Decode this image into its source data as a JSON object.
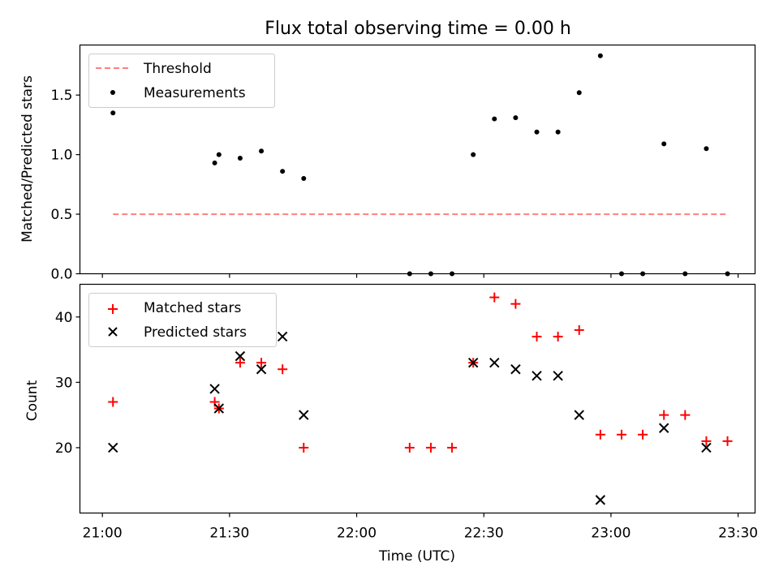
{
  "title": "Flux total observing time = 0.00 h",
  "colors": {
    "threshold": "#ff7f7f",
    "measurements": "#000000",
    "matched": "#ff0000",
    "predicted": "#000000"
  },
  "x_ticks": [
    "21:00",
    "21:30",
    "22:00",
    "22:30",
    "23:00",
    "23:30"
  ],
  "xlabel": "Time (UTC)",
  "chart_data": [
    {
      "type": "scatter",
      "ylabel": "Matched/Predicted stars",
      "x_unit": "minutes after 21:00 UTC",
      "xlim": [
        -5.3,
        154.0
      ],
      "ylim": [
        0.0,
        1.92
      ],
      "y_ticks": [
        "0.0",
        "0.5",
        "1.0",
        "1.5"
      ],
      "legend": {
        "position": "upper left",
        "entries": [
          "Threshold",
          "Measurements"
        ]
      },
      "threshold": {
        "name": "Threshold",
        "value": 0.5,
        "x_range": [
          2.5,
          147.5
        ]
      },
      "series": [
        {
          "name": "Measurements",
          "x": [
            2.5,
            26.5,
            27.5,
            32.5,
            37.5,
            42.5,
            47.5,
            72.5,
            77.5,
            82.5,
            87.5,
            92.5,
            97.5,
            102.5,
            107.5,
            112.5,
            117.5,
            122.5,
            127.5,
            132.5,
            137.5,
            142.5,
            147.5
          ],
          "y": [
            1.35,
            0.93,
            1.0,
            0.97,
            1.03,
            0.86,
            0.8,
            0.0,
            0.0,
            0.0,
            1.0,
            1.3,
            1.31,
            1.19,
            1.19,
            1.52,
            1.83,
            0.0,
            0.0,
            1.09,
            0.0,
            1.05,
            0.0
          ]
        }
      ]
    },
    {
      "type": "scatter",
      "ylabel": "Count",
      "x_unit": "minutes after 21:00 UTC",
      "xlim": [
        -5.3,
        154.0
      ],
      "ylim": [
        10.0,
        45.0
      ],
      "y_ticks": [
        "20",
        "30",
        "40"
      ],
      "legend": {
        "position": "upper left",
        "entries": [
          "Matched stars",
          "Predicted stars"
        ]
      },
      "series": [
        {
          "name": "Matched stars",
          "marker": "+",
          "x": [
            2.5,
            26.5,
            27.5,
            32.5,
            37.5,
            42.5,
            47.5,
            72.5,
            77.5,
            82.5,
            87.5,
            92.5,
            97.5,
            102.5,
            107.5,
            112.5,
            117.5,
            122.5,
            127.5,
            132.5,
            137.5,
            142.5,
            147.5
          ],
          "y": [
            27,
            27,
            26,
            33,
            33,
            32,
            20,
            20,
            20,
            20,
            33,
            43,
            42,
            37,
            37,
            38,
            22,
            22,
            22,
            25,
            25,
            21,
            21
          ]
        },
        {
          "name": "Predicted stars",
          "marker": "x",
          "x": [
            2.5,
            26.5,
            27.5,
            32.5,
            37.5,
            42.5,
            47.5,
            87.5,
            92.5,
            97.5,
            102.5,
            107.5,
            112.5,
            117.5,
            132.5,
            142.5
          ],
          "y": [
            20,
            29,
            26,
            34,
            32,
            37,
            25,
            33,
            33,
            32,
            31,
            31,
            25,
            12,
            23,
            20
          ]
        }
      ]
    }
  ]
}
